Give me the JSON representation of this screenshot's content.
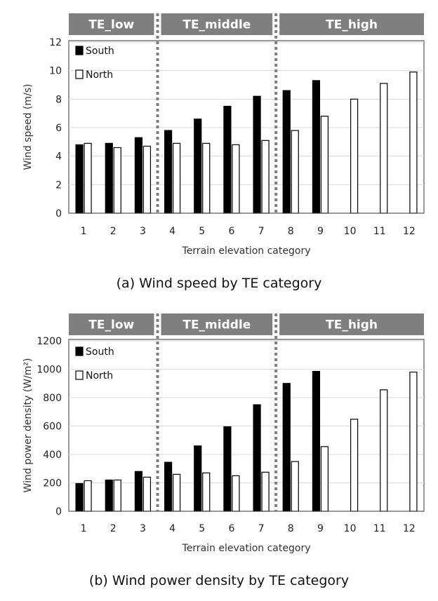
{
  "chart_data": [
    {
      "type": "bar",
      "caption": "(a) Wind speed by TE category",
      "xlabel": "Terrain elevation category",
      "ylabel": "Wind speed (m/s)",
      "ylim": [
        0,
        12
      ],
      "yticks": [
        0,
        2,
        4,
        6,
        8,
        10,
        12
      ],
      "categories": [
        "1",
        "2",
        "3",
        "4",
        "5",
        "6",
        "7",
        "8",
        "9",
        "10",
        "11",
        "12"
      ],
      "groups": [
        {
          "label": "TE_low",
          "from": 1,
          "to": 3
        },
        {
          "label": "TE_middle",
          "from": 4,
          "to": 7
        },
        {
          "label": "TE_high",
          "from": 8,
          "to": 12
        }
      ],
      "series": [
        {
          "name": "South",
          "color": "#000000",
          "values": [
            4.8,
            4.9,
            5.3,
            5.8,
            6.6,
            7.5,
            8.2,
            8.6,
            9.3,
            null,
            null,
            null
          ]
        },
        {
          "name": "North",
          "color": "#ffffff",
          "values": [
            4.9,
            4.6,
            4.7,
            4.9,
            4.9,
            4.8,
            5.1,
            5.8,
            6.8,
            8.0,
            9.1,
            9.9
          ]
        }
      ],
      "legend": "top-left",
      "grid": true
    },
    {
      "type": "bar",
      "caption": "(b) Wind power density by TE category",
      "xlabel": "Terrain elevation category",
      "ylabel": "Wind power density (W/m²)",
      "ylim": [
        0,
        1200
      ],
      "yticks": [
        0,
        200,
        400,
        600,
        800,
        1000,
        1200
      ],
      "categories": [
        "1",
        "2",
        "3",
        "4",
        "5",
        "6",
        "7",
        "8",
        "9",
        "10",
        "11",
        "12"
      ],
      "groups": [
        {
          "label": "TE_low",
          "from": 1,
          "to": 3
        },
        {
          "label": "TE_middle",
          "from": 4,
          "to": 7
        },
        {
          "label": "TE_high",
          "from": 8,
          "to": 12
        }
      ],
      "series": [
        {
          "name": "South",
          "color": "#000000",
          "values": [
            195,
            220,
            280,
            345,
            460,
            595,
            750,
            900,
            985,
            null,
            null,
            null
          ]
        },
        {
          "name": "North",
          "color": "#ffffff",
          "values": [
            215,
            220,
            240,
            260,
            270,
            250,
            275,
            350,
            455,
            648,
            855,
            980
          ]
        }
      ],
      "legend": "top-left",
      "grid": true
    }
  ]
}
